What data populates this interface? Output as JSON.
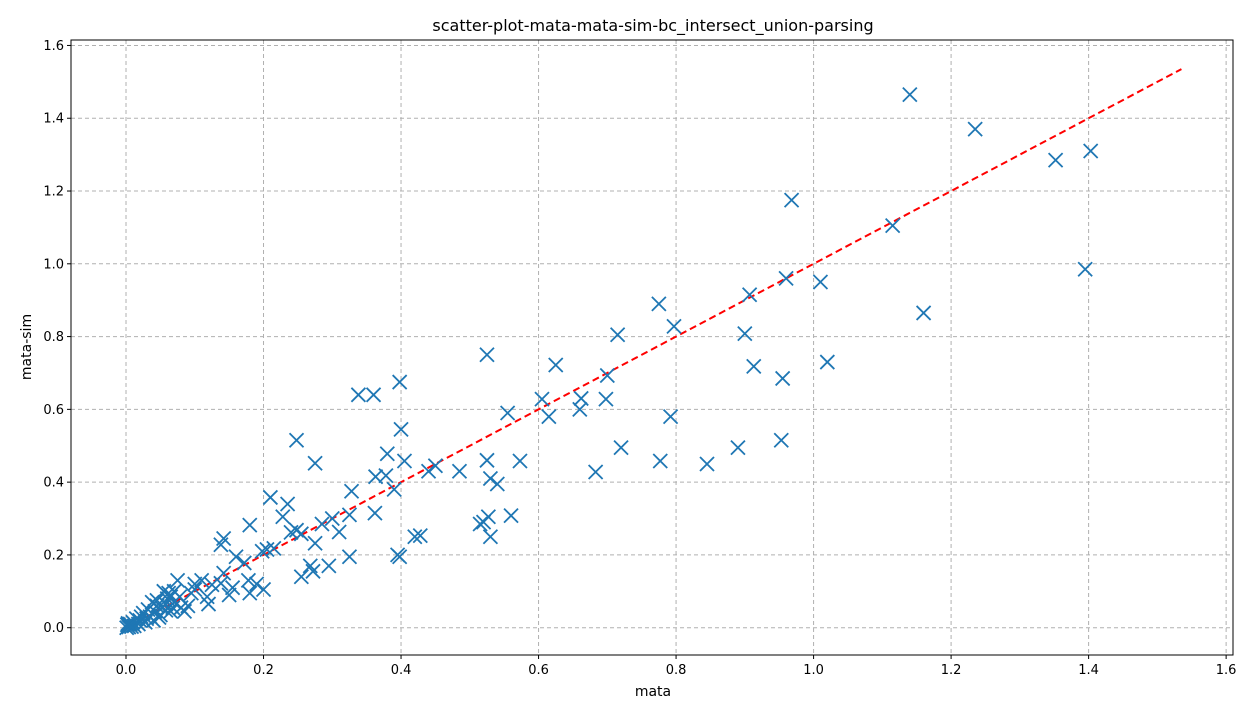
{
  "chart_data": {
    "type": "scatter",
    "title": "scatter-plot-mata-mata-sim-bc_intersect_union-parsing",
    "xlabel": "mata",
    "ylabel": "mata-sim",
    "xlim": [
      -0.08,
      1.61
    ],
    "ylim": [
      -0.075,
      1.615
    ],
    "xticks": [
      0.0,
      0.2,
      0.4,
      0.6,
      0.8,
      1.0,
      1.2,
      1.4,
      1.6
    ],
    "xtick_labels": [
      "0.0",
      "0.2",
      "0.4",
      "0.6",
      "0.8",
      "1.0",
      "1.2",
      "1.4",
      "1.6"
    ],
    "yticks": [
      0.0,
      0.2,
      0.4,
      0.6,
      0.8,
      1.0,
      1.2,
      1.4,
      1.6
    ],
    "ytick_labels": [
      "0.0",
      "0.2",
      "0.4",
      "0.6",
      "0.8",
      "1.0",
      "1.2",
      "1.4",
      "1.6"
    ],
    "grid": true,
    "marker": "x",
    "marker_color": "#1f77b4",
    "reference_line": {
      "x": [
        0.0,
        1.535
      ],
      "y": [
        0.0,
        1.535
      ],
      "color": "#ff0000",
      "style": "dashed"
    },
    "points": [
      [
        1.14,
        1.465
      ],
      [
        1.235,
        1.37
      ],
      [
        1.352,
        1.285
      ],
      [
        1.403,
        1.31
      ],
      [
        1.395,
        0.985
      ],
      [
        0.968,
        1.175
      ],
      [
        1.115,
        1.105
      ],
      [
        1.16,
        0.865
      ],
      [
        1.01,
        0.95
      ],
      [
        0.96,
        0.96
      ],
      [
        0.907,
        0.915
      ],
      [
        0.9,
        0.808
      ],
      [
        0.913,
        0.718
      ],
      [
        0.955,
        0.685
      ],
      [
        1.02,
        0.73
      ],
      [
        0.953,
        0.515
      ],
      [
        0.89,
        0.495
      ],
      [
        0.775,
        0.89
      ],
      [
        0.797,
        0.828
      ],
      [
        0.715,
        0.805
      ],
      [
        0.792,
        0.58
      ],
      [
        0.777,
        0.458
      ],
      [
        0.845,
        0.45
      ],
      [
        0.72,
        0.495
      ],
      [
        0.683,
        0.428
      ],
      [
        0.698,
        0.628
      ],
      [
        0.7,
        0.693
      ],
      [
        0.66,
        0.6
      ],
      [
        0.662,
        0.63
      ],
      [
        0.625,
        0.722
      ],
      [
        0.605,
        0.628
      ],
      [
        0.615,
        0.58
      ],
      [
        0.525,
        0.75
      ],
      [
        0.555,
        0.59
      ],
      [
        0.573,
        0.458
      ],
      [
        0.56,
        0.308
      ],
      [
        0.54,
        0.395
      ],
      [
        0.53,
        0.41
      ],
      [
        0.525,
        0.46
      ],
      [
        0.527,
        0.305
      ],
      [
        0.52,
        0.29
      ],
      [
        0.515,
        0.285
      ],
      [
        0.53,
        0.25
      ],
      [
        0.485,
        0.43
      ],
      [
        0.45,
        0.445
      ],
      [
        0.44,
        0.43
      ],
      [
        0.405,
        0.458
      ],
      [
        0.4,
        0.545
      ],
      [
        0.398,
        0.675
      ],
      [
        0.36,
        0.64
      ],
      [
        0.338,
        0.64
      ],
      [
        0.38,
        0.478
      ],
      [
        0.363,
        0.415
      ],
      [
        0.378,
        0.418
      ],
      [
        0.39,
        0.38
      ],
      [
        0.362,
        0.315
      ],
      [
        0.395,
        0.2
      ],
      [
        0.398,
        0.195
      ],
      [
        0.42,
        0.25
      ],
      [
        0.428,
        0.253
      ],
      [
        0.328,
        0.375
      ],
      [
        0.325,
        0.31
      ],
      [
        0.31,
        0.263
      ],
      [
        0.3,
        0.3
      ],
      [
        0.285,
        0.285
      ],
      [
        0.275,
        0.232
      ],
      [
        0.275,
        0.452
      ],
      [
        0.295,
        0.17
      ],
      [
        0.272,
        0.155
      ],
      [
        0.268,
        0.17
      ],
      [
        0.255,
        0.14
      ],
      [
        0.325,
        0.195
      ],
      [
        0.248,
        0.515
      ],
      [
        0.235,
        0.34
      ],
      [
        0.228,
        0.305
      ],
      [
        0.248,
        0.268
      ],
      [
        0.24,
        0.262
      ],
      [
        0.255,
        0.258
      ],
      [
        0.21,
        0.358
      ],
      [
        0.18,
        0.282
      ],
      [
        0.205,
        0.215
      ],
      [
        0.215,
        0.218
      ],
      [
        0.198,
        0.21
      ],
      [
        0.2,
        0.105
      ],
      [
        0.19,
        0.12
      ],
      [
        0.18,
        0.095
      ],
      [
        0.178,
        0.13
      ],
      [
        0.172,
        0.178
      ],
      [
        0.16,
        0.195
      ],
      [
        0.155,
        0.11
      ],
      [
        0.15,
        0.09
      ],
      [
        0.142,
        0.245
      ],
      [
        0.138,
        0.228
      ],
      [
        0.142,
        0.15
      ],
      [
        0.138,
        0.122
      ],
      [
        0.125,
        0.118
      ],
      [
        0.118,
        0.085
      ],
      [
        0.12,
        0.065
      ],
      [
        0.11,
        0.13
      ],
      [
        0.1,
        0.12
      ],
      [
        0.1,
        0.105
      ],
      [
        0.095,
        0.095
      ],
      [
        0.085,
        0.045
      ],
      [
        0.08,
        0.055
      ],
      [
        0.075,
        0.13
      ],
      [
        0.078,
        0.085
      ],
      [
        0.07,
        0.07
      ],
      [
        0.068,
        0.055
      ],
      [
        0.065,
        0.045
      ],
      [
        0.062,
        0.095
      ],
      [
        0.06,
        0.08
      ],
      [
        0.058,
        0.065
      ],
      [
        0.055,
        0.1
      ],
      [
        0.052,
        0.055
      ],
      [
        0.05,
        0.035
      ],
      [
        0.048,
        0.028
      ],
      [
        0.045,
        0.06
      ],
      [
        0.045,
        0.075
      ],
      [
        0.042,
        0.045
      ],
      [
        0.04,
        0.02
      ],
      [
        0.038,
        0.07
      ],
      [
        0.035,
        0.03
      ],
      [
        0.032,
        0.05
      ],
      [
        0.03,
        0.025
      ],
      [
        0.028,
        0.015
      ],
      [
        0.025,
        0.04
      ],
      [
        0.022,
        0.03
      ],
      [
        0.02,
        0.02
      ],
      [
        0.018,
        0.01
      ],
      [
        0.015,
        0.025
      ],
      [
        0.012,
        0.005
      ],
      [
        0.01,
        0.015
      ],
      [
        0.008,
        0.003
      ],
      [
        0.006,
        0.01
      ],
      [
        0.004,
        0.002
      ],
      [
        0.002,
        0.008
      ],
      [
        0.001,
        0.0
      ],
      [
        0.003,
        0.012
      ],
      [
        0.058,
        0.048
      ],
      [
        0.065,
        0.085
      ],
      [
        0.07,
        0.1
      ],
      [
        0.09,
        0.06
      ]
    ]
  }
}
